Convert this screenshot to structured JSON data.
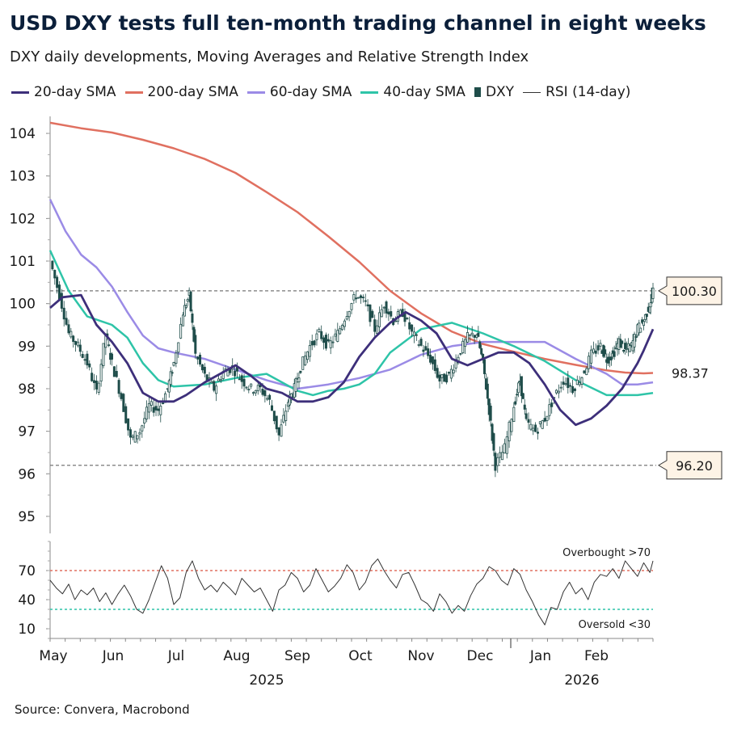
{
  "title": "USD DXY tests full ten-month trading channel in eight weeks",
  "subtitle": "DXY daily developments, Moving Averages and Relative Strength Index",
  "source": "Source: Convera, Macrobond",
  "colors": {
    "sma20": "#3d2f7a",
    "sma200": "#e07060",
    "sma60": "#9b8be6",
    "sma40": "#2ec4a8",
    "dxy": "#1f4d4a",
    "rsi": "#333333",
    "overbought": "#e07060",
    "oversold": "#2ec4a8"
  },
  "legend": [
    {
      "name": "20-day SMA",
      "key": "sma20",
      "kind": "line"
    },
    {
      "name": "200-day SMA",
      "key": "sma200",
      "kind": "line"
    },
    {
      "name": "60-day SMA",
      "key": "sma60",
      "kind": "line"
    },
    {
      "name": "40-day SMA",
      "key": "sma40",
      "kind": "line"
    },
    {
      "name": "DXY",
      "key": "dxy",
      "kind": "candle"
    },
    {
      "name": "RSI (14-day)",
      "key": "rsi",
      "kind": "thin"
    }
  ],
  "chart_data": [
    {
      "type": "line",
      "panel": "price",
      "x_unit": "months since 1 May 2025",
      "xlim": [
        0,
        10
      ],
      "ylim": [
        94.6,
        104.4
      ],
      "yticks": [
        95,
        96,
        97,
        98,
        99,
        100,
        101,
        102,
        103,
        104
      ],
      "grid": false,
      "legend_position": "top",
      "reference_lines": [
        {
          "value": 100.3,
          "label": "100.30",
          "style": "dashed"
        },
        {
          "value": 96.2,
          "label": "96.20",
          "style": "dashed"
        }
      ],
      "end_labels": [
        {
          "series": "200-day SMA",
          "value": 98.37,
          "label": "98.37"
        }
      ],
      "series": [
        {
          "name": "200-day SMA",
          "key": "sma200",
          "x": [
            0,
            0.5,
            1,
            1.5,
            2,
            2.5,
            3,
            3.5,
            4,
            4.5,
            5,
            5.5,
            6,
            6.5,
            7,
            7.5,
            8,
            8.5,
            9,
            9.3,
            9.6,
            9.75
          ],
          "values": [
            104.25,
            104.12,
            104.02,
            103.85,
            103.65,
            103.4,
            103.07,
            102.62,
            102.15,
            101.58,
            100.98,
            100.3,
            99.77,
            99.34,
            99.05,
            98.87,
            98.7,
            98.56,
            98.43,
            98.38,
            98.36,
            98.37
          ]
        },
        {
          "name": "60-day SMA",
          "key": "sma60",
          "x": [
            0,
            0.25,
            0.5,
            0.75,
            1,
            1.25,
            1.5,
            1.75,
            2,
            2.5,
            3,
            3.5,
            4,
            4.5,
            5,
            5.5,
            6,
            6.5,
            7,
            7.5,
            8,
            8.5,
            9,
            9.25,
            9.5,
            9.75
          ],
          "values": [
            102.45,
            101.7,
            101.15,
            100.85,
            100.4,
            99.8,
            99.25,
            98.95,
            98.85,
            98.7,
            98.45,
            98.2,
            98.0,
            98.1,
            98.25,
            98.45,
            98.8,
            99.0,
            99.1,
            99.1,
            99.1,
            98.7,
            98.35,
            98.1,
            98.1,
            98.15
          ]
        },
        {
          "name": "40-day SMA",
          "key": "sma40",
          "x": [
            0,
            0.3,
            0.6,
            1,
            1.25,
            1.5,
            1.75,
            2,
            2.5,
            3,
            3.5,
            4,
            4.25,
            4.5,
            4.75,
            5,
            5.25,
            5.5,
            6,
            6.5,
            7,
            7.5,
            8,
            8.5,
            9,
            9.5,
            9.75
          ],
          "values": [
            101.25,
            100.3,
            99.7,
            99.5,
            99.2,
            98.6,
            98.2,
            98.05,
            98.1,
            98.25,
            98.35,
            97.95,
            97.85,
            97.95,
            98.0,
            98.1,
            98.35,
            98.85,
            99.4,
            99.55,
            99.3,
            99.0,
            98.65,
            98.2,
            97.85,
            97.85,
            97.9
          ]
        },
        {
          "name": "20-day SMA",
          "key": "sma20",
          "x": [
            0,
            0.2,
            0.5,
            0.75,
            1,
            1.25,
            1.5,
            1.75,
            2,
            2.2,
            2.5,
            2.75,
            3,
            3.25,
            3.5,
            3.75,
            4,
            4.25,
            4.5,
            4.75,
            5,
            5.25,
            5.5,
            5.75,
            6,
            6.25,
            6.5,
            6.75,
            7,
            7.25,
            7.5,
            7.75,
            8,
            8.25,
            8.5,
            8.75,
            9,
            9.25,
            9.5,
            9.6,
            9.75
          ],
          "values": [
            99.9,
            100.15,
            100.2,
            99.5,
            99.1,
            98.6,
            97.9,
            97.7,
            97.7,
            97.85,
            98.15,
            98.35,
            98.55,
            98.3,
            98.0,
            97.9,
            97.7,
            97.7,
            97.8,
            98.15,
            98.75,
            99.2,
            99.55,
            99.8,
            99.6,
            99.3,
            98.7,
            98.55,
            98.7,
            98.85,
            98.85,
            98.6,
            98.1,
            97.5,
            97.15,
            97.3,
            97.6,
            98.0,
            98.6,
            98.9,
            99.4
          ]
        },
        {
          "name": "DXY",
          "key": "dxy",
          "kind": "candlestick",
          "x": [
            0,
            0.15,
            0.3,
            0.45,
            0.6,
            0.75,
            0.9,
            1.0,
            1.15,
            1.3,
            1.45,
            1.6,
            1.75,
            1.9,
            2.0,
            2.15,
            2.25,
            2.35,
            2.5,
            2.65,
            2.8,
            2.95,
            3.1,
            3.25,
            3.4,
            3.55,
            3.7,
            3.85,
            3.95,
            4.05,
            4.2,
            4.35,
            4.5,
            4.65,
            4.8,
            4.95,
            5.1,
            5.25,
            5.4,
            5.55,
            5.7,
            5.85,
            6.0,
            6.15,
            6.3,
            6.45,
            6.6,
            6.75,
            6.9,
            7.0,
            7.1,
            7.2,
            7.35,
            7.5,
            7.6,
            7.7,
            7.85,
            8.0,
            8.15,
            8.3,
            8.45,
            8.6,
            8.75,
            8.9,
            9.0,
            9.1,
            9.2,
            9.3,
            9.4,
            9.5,
            9.6,
            9.7,
            9.75
          ],
          "values": [
            101.0,
            100.2,
            99.3,
            99.0,
            98.6,
            97.9,
            99.3,
            98.6,
            97.8,
            96.8,
            97.0,
            97.6,
            97.5,
            98.0,
            98.6,
            99.8,
            100.2,
            98.8,
            98.3,
            98.0,
            98.4,
            98.5,
            98.2,
            98.0,
            98.0,
            97.7,
            96.9,
            97.7,
            98.0,
            98.5,
            99.0,
            99.3,
            99.0,
            99.3,
            99.8,
            100.2,
            100.0,
            99.4,
            100.0,
            99.6,
            99.8,
            99.3,
            99.0,
            98.7,
            98.2,
            98.3,
            98.8,
            99.2,
            99.3,
            98.6,
            97.5,
            96.2,
            96.6,
            97.6,
            98.2,
            97.2,
            97.0,
            97.3,
            97.8,
            98.2,
            98.0,
            98.3,
            98.8,
            99.0,
            98.7,
            98.8,
            99.1,
            98.9,
            99.0,
            99.4,
            99.6,
            100.0,
            100.3
          ]
        }
      ]
    },
    {
      "type": "line",
      "panel": "rsi",
      "x_unit": "months since 1 May 2025",
      "xlim": [
        0,
        10
      ],
      "ylim": [
        0,
        100
      ],
      "yticks": [
        10,
        40,
        70
      ],
      "annotations": [
        "Overbought >70",
        "Oversold <30"
      ],
      "reference_lines": [
        {
          "value": 70,
          "label": "Overbought >70",
          "style": "dashed"
        },
        {
          "value": 30,
          "label": "Oversold <30",
          "style": "dashed"
        }
      ],
      "x_tick_labels": [
        "May",
        "Jun",
        "Jul",
        "Aug",
        "Sep",
        "Oct",
        "Nov",
        "Dec",
        "Jan",
        "Feb"
      ],
      "year_labels": [
        "2025",
        "2026"
      ],
      "series": [
        {
          "name": "RSI (14-day)",
          "key": "rsi",
          "x": [
            0,
            0.1,
            0.2,
            0.3,
            0.4,
            0.5,
            0.6,
            0.7,
            0.8,
            0.9,
            1.0,
            1.1,
            1.2,
            1.3,
            1.4,
            1.5,
            1.6,
            1.7,
            1.8,
            1.9,
            2.0,
            2.1,
            2.2,
            2.3,
            2.4,
            2.5,
            2.6,
            2.7,
            2.8,
            2.9,
            3.0,
            3.1,
            3.2,
            3.3,
            3.4,
            3.5,
            3.6,
            3.7,
            3.8,
            3.9,
            4.0,
            4.1,
            4.2,
            4.3,
            4.4,
            4.5,
            4.6,
            4.7,
            4.8,
            4.9,
            5.0,
            5.1,
            5.2,
            5.3,
            5.4,
            5.5,
            5.6,
            5.7,
            5.8,
            5.9,
            6.0,
            6.1,
            6.2,
            6.3,
            6.4,
            6.5,
            6.6,
            6.7,
            6.8,
            6.9,
            7.0,
            7.1,
            7.2,
            7.3,
            7.4,
            7.5,
            7.6,
            7.7,
            7.8,
            7.9,
            8.0,
            8.1,
            8.2,
            8.3,
            8.4,
            8.5,
            8.6,
            8.7,
            8.8,
            8.9,
            9.0,
            9.1,
            9.2,
            9.3,
            9.4,
            9.5,
            9.6,
            9.7,
            9.75
          ],
          "values": [
            60,
            52,
            46,
            56,
            40,
            50,
            45,
            52,
            38,
            47,
            35,
            46,
            55,
            44,
            30,
            26,
            40,
            58,
            75,
            62,
            35,
            42,
            68,
            80,
            62,
            50,
            55,
            48,
            58,
            52,
            45,
            62,
            55,
            48,
            52,
            40,
            28,
            50,
            55,
            68,
            62,
            48,
            55,
            72,
            60,
            48,
            54,
            62,
            76,
            68,
            50,
            58,
            75,
            82,
            70,
            60,
            52,
            66,
            68,
            55,
            40,
            36,
            28,
            46,
            38,
            26,
            34,
            28,
            44,
            56,
            62,
            74,
            70,
            60,
            55,
            72,
            66,
            50,
            38,
            24,
            14,
            32,
            30,
            48,
            58,
            46,
            52,
            40,
            58,
            66,
            64,
            72,
            62,
            80,
            72,
            64,
            78,
            68,
            80
          ]
        }
      ]
    }
  ]
}
